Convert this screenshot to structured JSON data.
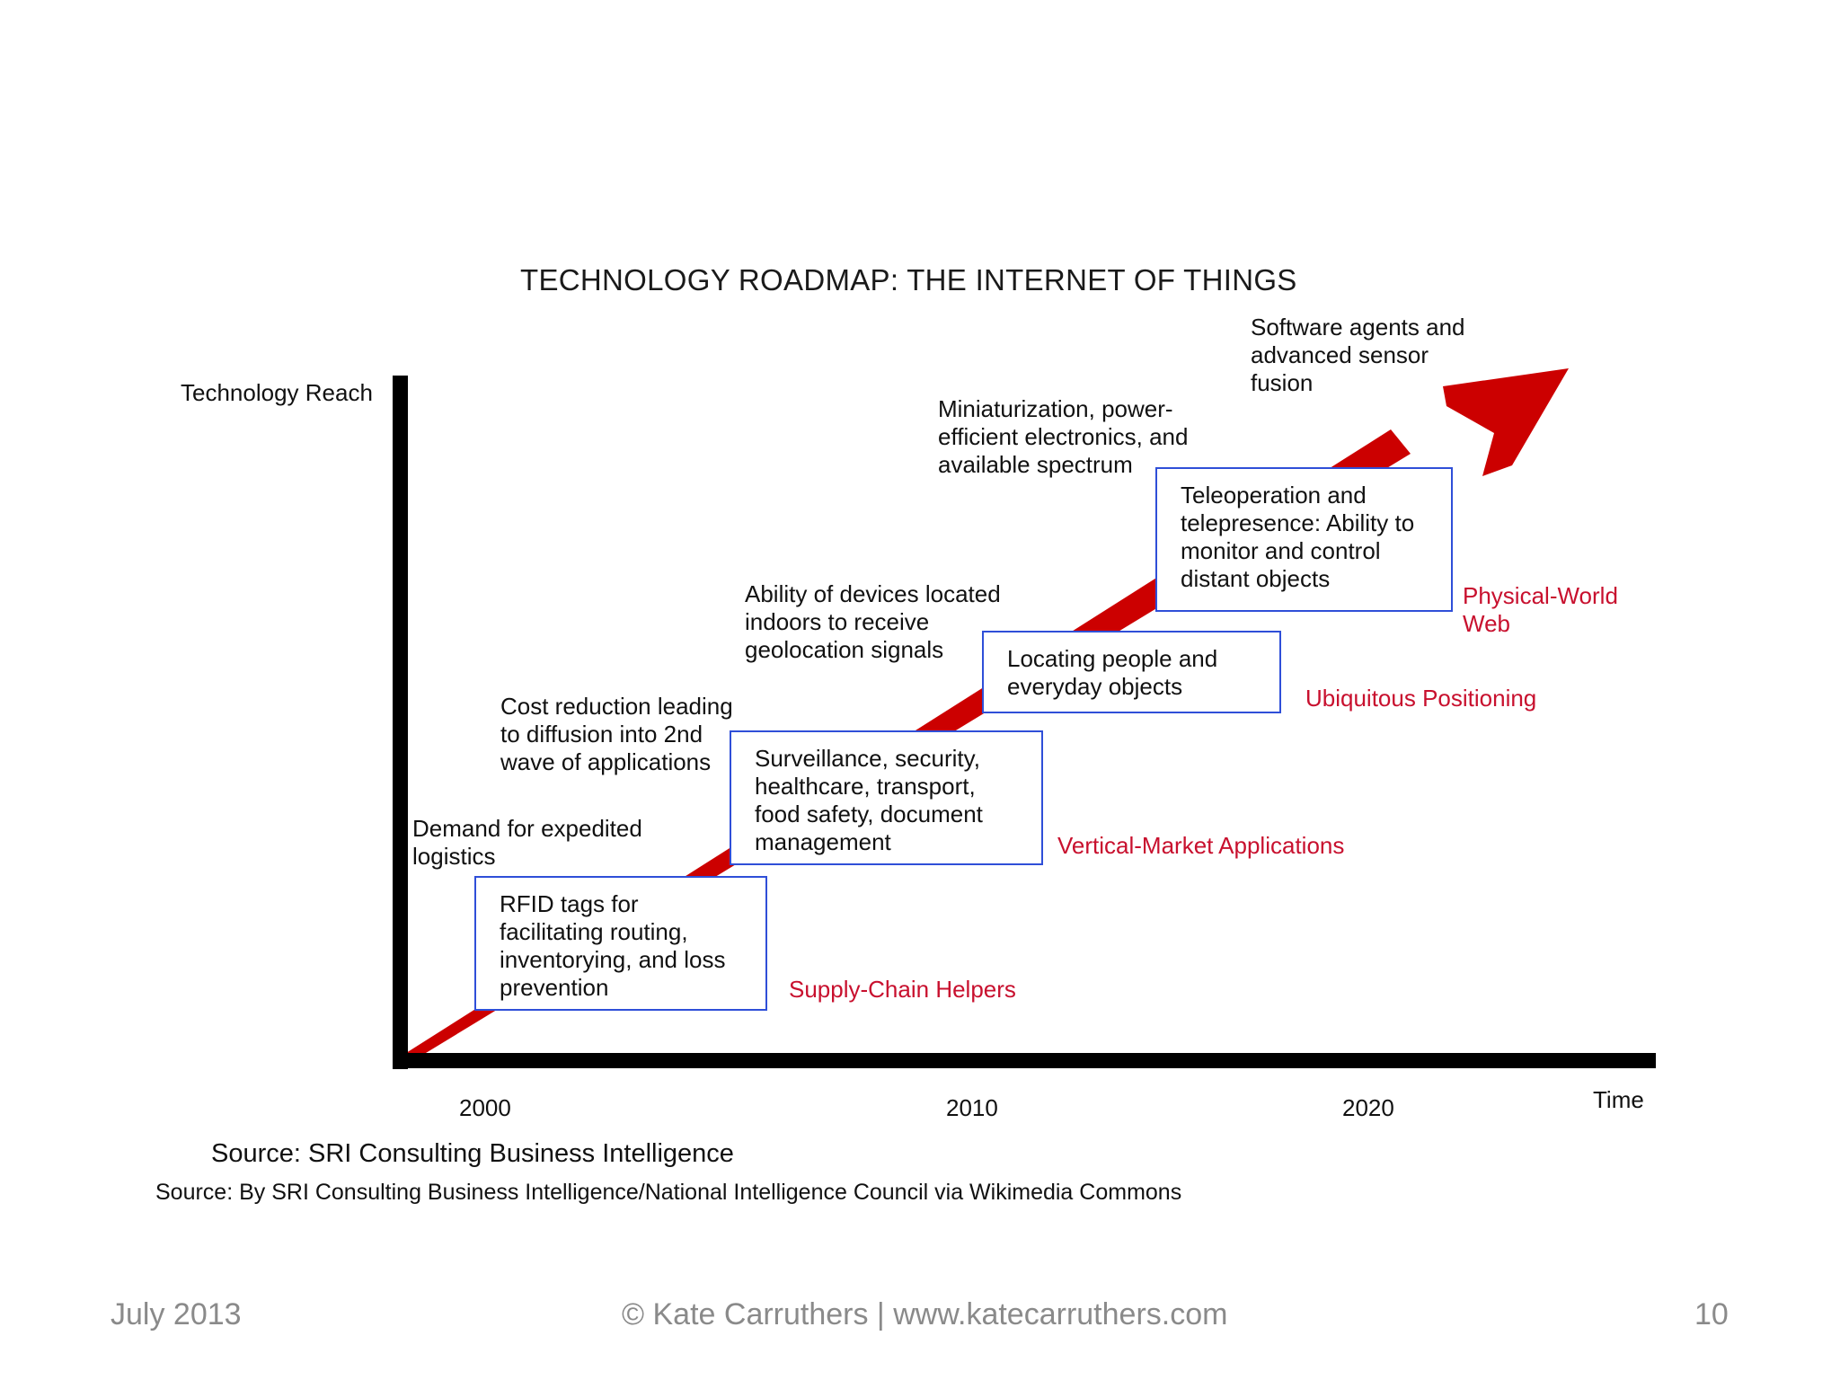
{
  "title": "TECHNOLOGY ROADMAP: THE INTERNET OF THINGS",
  "y_axis_label": "Technology Reach",
  "x_axis_label": "Time",
  "x_ticks": [
    "2000",
    "2010",
    "2020"
  ],
  "drivers": {
    "d1": "Demand for expedited\nlogistics",
    "d2": "Cost reduction leading\nto diffusion into 2nd\nwave of applications",
    "d3": "Ability of devices located\nindoors to receive\ngeolocation signals",
    "d4": "Miniaturization, power-\nefficient electronics, and\navailable spectrum",
    "d5": "Software agents and\nadvanced sensor\nfusion"
  },
  "boxes": {
    "b1": "RFID tags for\nfacilitating routing,\ninventorying, and loss\nprevention",
    "b2": "Surveillance, security,\nhealthcare, transport,\nfood safety,  document\nmanagement",
    "b3": "Locating people and\neveryday objects",
    "b4": "Teleoperation and\ntelepresence: Ability to\nmonitor and control\ndistant objects"
  },
  "categories": {
    "c1": "Supply-Chain Helpers",
    "c2": "Vertical-Market Applications",
    "c3": "Ubiquitous Positioning",
    "c4": "Physical-World\nWeb"
  },
  "source_primary": "Source: SRI Consulting Business Intelligence",
  "source_secondary": "Source: By SRI Consulting Business Intelligence/National Intelligence Council via Wikimedia Commons",
  "footer": {
    "date": "July 2013",
    "copyright": "© Kate Carruthers | www.katecarruthers.com",
    "page": "10"
  },
  "colors": {
    "arrow": "#cc0000",
    "category_text": "#c8102e",
    "box_border": "#2f4fd8",
    "axis": "#000000",
    "footer_text": "#8a8a8a"
  }
}
